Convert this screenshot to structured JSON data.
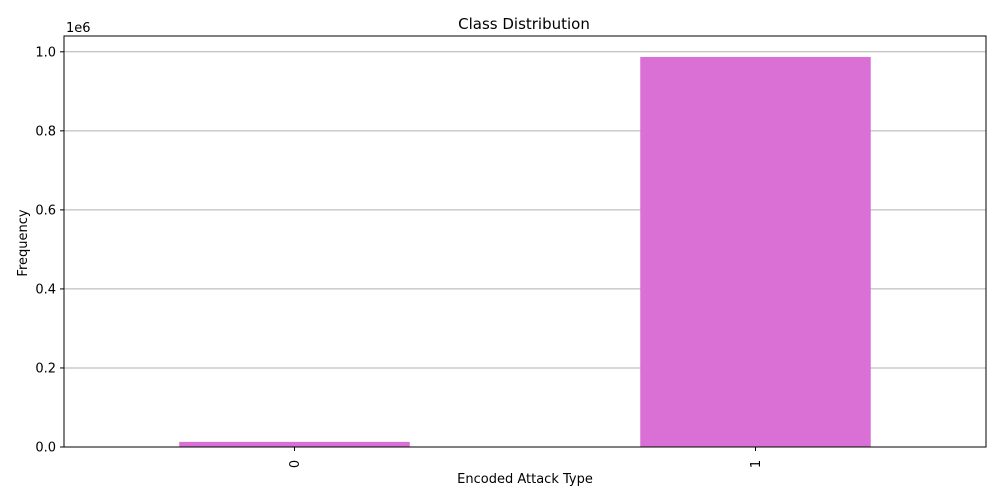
{
  "chart_data": {
    "type": "bar",
    "title": "Class Distribution",
    "xlabel": "Encoded Attack Type",
    "ylabel": "Frequency",
    "categories": [
      "0",
      "1"
    ],
    "values": [
      13000,
      987000
    ],
    "ylim": [
      0,
      1040000
    ],
    "y_offset_label": "1e6",
    "y_ticks": [
      0,
      200000,
      400000,
      600000,
      800000,
      1000000
    ],
    "y_tick_labels": [
      "0.0",
      "0.2",
      "0.4",
      "0.6",
      "0.8",
      "1.0"
    ],
    "grid": "horizontal",
    "bar_color": "#DA70D6",
    "grid_color": "#b0b0b0"
  }
}
